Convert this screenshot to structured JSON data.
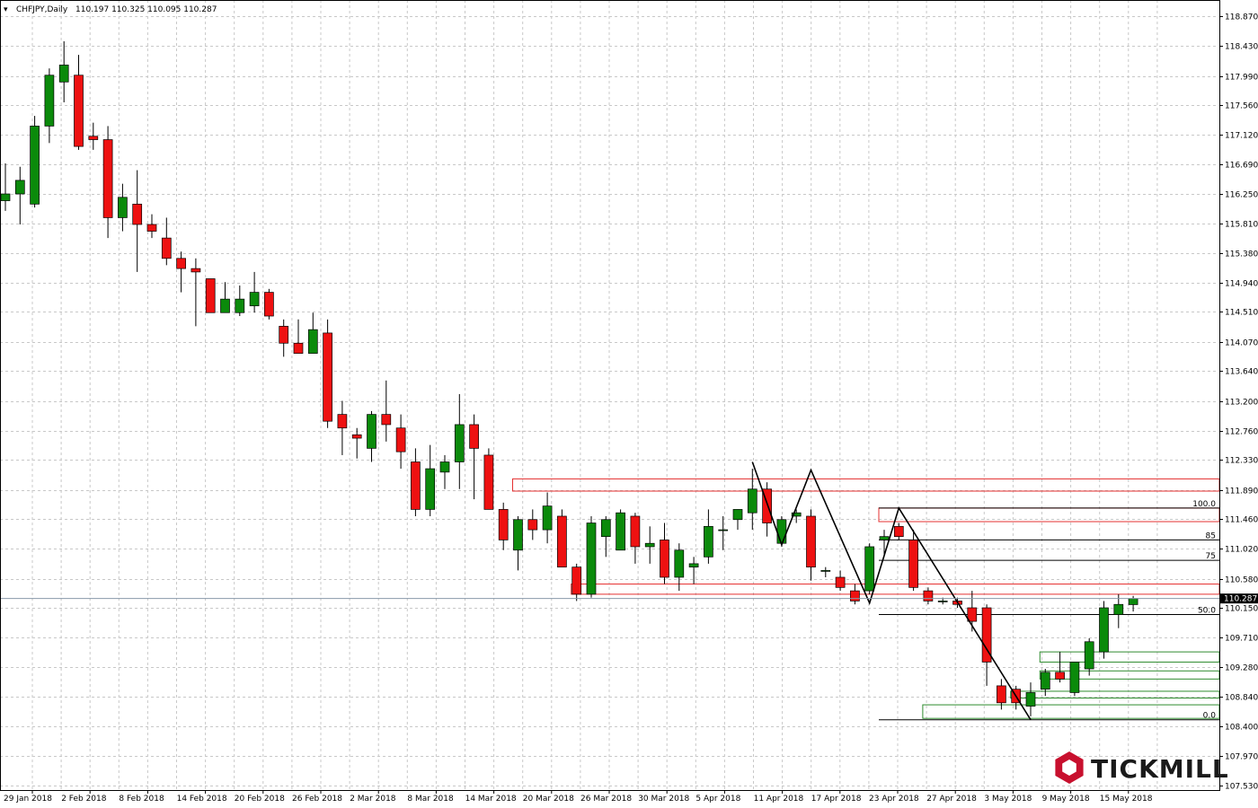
{
  "header": {
    "symbol_label": "CHFJPY,Daily",
    "ohlc_label": "110.197 110.325 110.095 110.287"
  },
  "logo": {
    "text": "TICKMILL"
  },
  "colors": {
    "bull": "#0b8a0b",
    "bear": "#ee1111",
    "grid": "#c8c8c8",
    "resistance": "#e53030",
    "support": "#2e8b2e",
    "fib": "#000000",
    "price_line": "#8899aa"
  },
  "chart_data": {
    "type": "candlestick",
    "symbol": "CHFJPY",
    "timeframe": "Daily",
    "current_price": 110.287,
    "current_price_label": "110.287",
    "y_ticks": [
      "118.870",
      "118.430",
      "117.990",
      "117.560",
      "117.120",
      "116.690",
      "116.250",
      "115.810",
      "115.380",
      "114.940",
      "114.510",
      "114.070",
      "113.640",
      "113.200",
      "112.760",
      "112.330",
      "111.890",
      "111.460",
      "111.020",
      "110.580",
      "110.150",
      "109.710",
      "109.280",
      "108.840",
      "108.400",
      "107.970",
      "107.530"
    ],
    "x_ticks": [
      "29 Jan 2018",
      "2 Feb 2018",
      "8 Feb 2018",
      "14 Feb 2018",
      "20 Feb 2018",
      "26 Feb 2018",
      "2 Mar 2018",
      "8 Mar 2018",
      "14 Mar 2018",
      "20 Mar 2018",
      "26 Mar 2018",
      "30 Mar 2018",
      "5 Apr 2018",
      "11 Apr 2018",
      "17 Apr 2018",
      "23 Apr 2018",
      "27 Apr 2018",
      "3 May 2018",
      "9 May 2018",
      "15 May 2018"
    ],
    "candles": [
      {
        "o": 116.15,
        "h": 116.7,
        "l": 116.0,
        "c": 116.25
      },
      {
        "o": 116.25,
        "h": 116.65,
        "l": 115.8,
        "c": 116.45
      },
      {
        "o": 116.1,
        "h": 117.4,
        "l": 116.05,
        "c": 117.25
      },
      {
        "o": 117.25,
        "h": 118.1,
        "l": 117.0,
        "c": 118.0
      },
      {
        "o": 117.9,
        "h": 118.5,
        "l": 117.6,
        "c": 118.15
      },
      {
        "o": 118.0,
        "h": 118.3,
        "l": 116.9,
        "c": 116.95
      },
      {
        "o": 117.1,
        "h": 117.3,
        "l": 116.9,
        "c": 117.05
      },
      {
        "o": 117.05,
        "h": 117.25,
        "l": 115.6,
        "c": 115.9
      },
      {
        "o": 115.9,
        "h": 116.4,
        "l": 115.7,
        "c": 116.2
      },
      {
        "o": 116.1,
        "h": 116.6,
        "l": 115.1,
        "c": 115.8
      },
      {
        "o": 115.8,
        "h": 115.95,
        "l": 115.6,
        "c": 115.7
      },
      {
        "o": 115.6,
        "h": 115.9,
        "l": 115.2,
        "c": 115.3
      },
      {
        "o": 115.3,
        "h": 115.4,
        "l": 114.8,
        "c": 115.15
      },
      {
        "o": 115.15,
        "h": 115.3,
        "l": 114.3,
        "c": 115.1
      },
      {
        "o": 115.0,
        "h": 115.0,
        "l": 114.5,
        "c": 114.5
      },
      {
        "o": 114.5,
        "h": 114.95,
        "l": 114.5,
        "c": 114.7
      },
      {
        "o": 114.5,
        "h": 114.9,
        "l": 114.45,
        "c": 114.7
      },
      {
        "o": 114.6,
        "h": 115.1,
        "l": 114.5,
        "c": 114.8
      },
      {
        "o": 114.8,
        "h": 114.85,
        "l": 114.4,
        "c": 114.45
      },
      {
        "o": 114.3,
        "h": 114.4,
        "l": 113.85,
        "c": 114.05
      },
      {
        "o": 114.05,
        "h": 114.4,
        "l": 113.95,
        "c": 113.9
      },
      {
        "o": 113.9,
        "h": 114.5,
        "l": 113.9,
        "c": 114.25
      },
      {
        "o": 114.2,
        "h": 114.4,
        "l": 112.8,
        "c": 112.9
      },
      {
        "o": 113.0,
        "h": 113.2,
        "l": 112.4,
        "c": 112.8
      },
      {
        "o": 112.7,
        "h": 112.8,
        "l": 112.35,
        "c": 112.65
      },
      {
        "o": 112.5,
        "h": 113.05,
        "l": 112.3,
        "c": 113.0
      },
      {
        "o": 113.0,
        "h": 113.5,
        "l": 112.6,
        "c": 112.85
      },
      {
        "o": 112.8,
        "h": 113.0,
        "l": 112.2,
        "c": 112.45
      },
      {
        "o": 112.3,
        "h": 112.5,
        "l": 111.5,
        "c": 111.6
      },
      {
        "o": 111.6,
        "h": 112.55,
        "l": 111.5,
        "c": 112.2
      },
      {
        "o": 112.15,
        "h": 112.4,
        "l": 111.9,
        "c": 112.3
      },
      {
        "o": 112.3,
        "h": 113.3,
        "l": 111.9,
        "c": 112.85
      },
      {
        "o": 112.85,
        "h": 113.0,
        "l": 111.75,
        "c": 112.5
      },
      {
        "o": 112.4,
        "h": 112.5,
        "l": 111.6,
        "c": 111.6
      },
      {
        "o": 111.6,
        "h": 111.7,
        "l": 111.0,
        "c": 111.15
      },
      {
        "o": 111.0,
        "h": 111.5,
        "l": 110.7,
        "c": 111.45
      },
      {
        "o": 111.45,
        "h": 111.6,
        "l": 111.15,
        "c": 111.3
      },
      {
        "o": 111.3,
        "h": 111.85,
        "l": 111.1,
        "c": 111.65
      },
      {
        "o": 111.5,
        "h": 111.6,
        "l": 110.75,
        "c": 110.75
      },
      {
        "o": 110.75,
        "h": 110.8,
        "l": 110.25,
        "c": 110.35
      },
      {
        "o": 110.35,
        "h": 111.5,
        "l": 110.3,
        "c": 111.4
      },
      {
        "o": 111.2,
        "h": 111.5,
        "l": 110.9,
        "c": 111.45
      },
      {
        "o": 111.0,
        "h": 111.6,
        "l": 111.0,
        "c": 111.55
      },
      {
        "o": 111.5,
        "h": 111.55,
        "l": 110.8,
        "c": 111.05
      },
      {
        "o": 111.05,
        "h": 111.35,
        "l": 110.8,
        "c": 111.1
      },
      {
        "o": 111.15,
        "h": 111.4,
        "l": 110.5,
        "c": 110.6
      },
      {
        "o": 110.6,
        "h": 111.1,
        "l": 110.4,
        "c": 111.0
      },
      {
        "o": 110.75,
        "h": 110.9,
        "l": 110.5,
        "c": 110.8
      },
      {
        "o": 110.9,
        "h": 111.6,
        "l": 110.8,
        "c": 111.35
      },
      {
        "o": 111.3,
        "h": 111.5,
        "l": 111.0,
        "c": 111.3
      },
      {
        "o": 111.45,
        "h": 111.6,
        "l": 111.3,
        "c": 111.6
      },
      {
        "o": 111.55,
        "h": 112.2,
        "l": 111.3,
        "c": 111.9
      },
      {
        "o": 111.9,
        "h": 112.0,
        "l": 111.2,
        "c": 111.4
      },
      {
        "o": 111.1,
        "h": 111.5,
        "l": 111.05,
        "c": 111.45
      },
      {
        "o": 111.5,
        "h": 111.6,
        "l": 111.4,
        "c": 111.55
      },
      {
        "o": 111.5,
        "h": 111.6,
        "l": 110.55,
        "c": 110.75
      },
      {
        "o": 110.7,
        "h": 110.75,
        "l": 110.6,
        "c": 110.7
      },
      {
        "o": 110.6,
        "h": 110.7,
        "l": 110.4,
        "c": 110.45
      },
      {
        "o": 110.4,
        "h": 110.5,
        "l": 110.2,
        "c": 110.25
      },
      {
        "o": 110.4,
        "h": 111.1,
        "l": 110.35,
        "c": 111.05
      },
      {
        "o": 111.15,
        "h": 111.3,
        "l": 110.9,
        "c": 111.2
      },
      {
        "o": 111.35,
        "h": 111.4,
        "l": 111.15,
        "c": 111.2
      },
      {
        "o": 111.15,
        "h": 111.3,
        "l": 110.4,
        "c": 110.45
      },
      {
        "o": 110.4,
        "h": 110.45,
        "l": 110.2,
        "c": 110.25
      },
      {
        "o": 110.25,
        "h": 110.3,
        "l": 110.2,
        "c": 110.25
      },
      {
        "o": 110.25,
        "h": 110.3,
        "l": 110.15,
        "c": 110.2
      },
      {
        "o": 110.15,
        "h": 110.4,
        "l": 109.8,
        "c": 109.95
      },
      {
        "o": 110.15,
        "h": 110.2,
        "l": 109.0,
        "c": 109.35
      },
      {
        "o": 109.0,
        "h": 109.1,
        "l": 108.65,
        "c": 108.75
      },
      {
        "o": 108.95,
        "h": 109.0,
        "l": 108.65,
        "c": 108.75
      },
      {
        "o": 108.7,
        "h": 109.05,
        "l": 108.55,
        "c": 108.9
      },
      {
        "o": 108.95,
        "h": 109.25,
        "l": 108.85,
        "c": 109.2
      },
      {
        "o": 109.2,
        "h": 109.5,
        "l": 109.05,
        "c": 109.1
      },
      {
        "o": 108.9,
        "h": 109.35,
        "l": 108.85,
        "c": 109.35
      },
      {
        "o": 109.25,
        "h": 109.7,
        "l": 109.15,
        "c": 109.65
      },
      {
        "o": 109.5,
        "h": 110.25,
        "l": 109.4,
        "c": 110.15
      },
      {
        "o": 110.05,
        "h": 110.35,
        "l": 109.85,
        "c": 110.2
      },
      {
        "o": 110.197,
        "h": 110.325,
        "l": 110.095,
        "c": 110.287
      }
    ],
    "fib_levels": [
      {
        "label": "100.0",
        "price": 111.62
      },
      {
        "label": "85",
        "price": 111.15
      },
      {
        "label": "75",
        "price": 110.85
      },
      {
        "label": "50.0",
        "price": 110.05
      },
      {
        "label": "0.0",
        "price": 108.5
      }
    ],
    "zigzag": [
      {
        "i": 51,
        "p": 112.3
      },
      {
        "i": 53,
        "p": 111.08
      },
      {
        "i": 55,
        "p": 112.18
      },
      {
        "i": 59,
        "p": 110.22
      },
      {
        "i": 61,
        "p": 111.62
      },
      {
        "i": 70,
        "p": 108.5
      }
    ],
    "resistance_zones": [
      {
        "from_i": 35,
        "top": 112.05,
        "bottom": 111.87
      },
      {
        "from_i": 60,
        "top": 111.62,
        "bottom": 111.42
      },
      {
        "from_i": 39,
        "top": 110.5,
        "bottom": 110.35
      }
    ],
    "support_zones": [
      {
        "from_i": 71,
        "top": 109.5,
        "bottom": 109.35
      },
      {
        "from_i": 71,
        "top": 109.22,
        "bottom": 109.1
      },
      {
        "from_i": 69,
        "top": 108.92,
        "bottom": 108.82
      },
      {
        "from_i": 63,
        "top": 108.72,
        "bottom": 108.52
      }
    ]
  }
}
